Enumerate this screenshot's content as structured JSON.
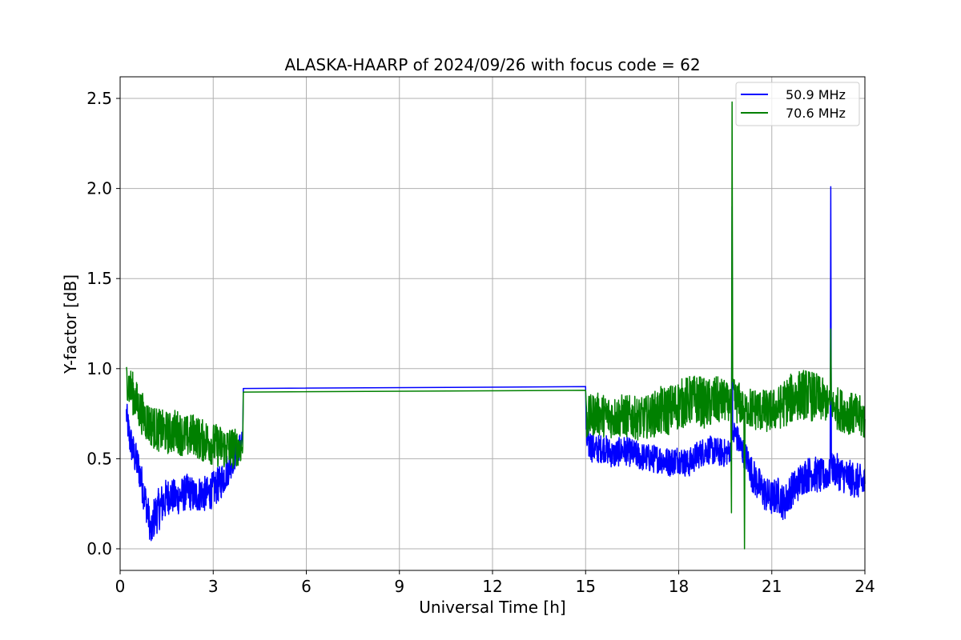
{
  "chart_data": {
    "type": "line",
    "title": "ALASKA-HAARP of 2024/09/26 with focus code = 62",
    "xlabel": "Universal Time [h]",
    "ylabel": "Y-factor [dB]",
    "xlim": [
      0,
      24
    ],
    "ylim": [
      -0.12,
      2.62
    ],
    "xticks": [
      0,
      3,
      6,
      9,
      12,
      15,
      18,
      21,
      24
    ],
    "xtick_labels": [
      "0",
      "3",
      "6",
      "9",
      "12",
      "15",
      "18",
      "21",
      "24"
    ],
    "yticks": [
      0.0,
      0.5,
      1.0,
      1.5,
      2.0,
      2.5
    ],
    "ytick_labels": [
      "0.0",
      "0.5",
      "1.0",
      "1.5",
      "2.0",
      "2.5"
    ],
    "grid": true,
    "legend_position": "top-right",
    "series": [
      {
        "name": "50.9 MHz",
        "color": "#0000ff",
        "x": [
          0.2,
          0.3,
          0.45,
          0.6,
          0.75,
          0.9,
          1.0,
          1.1,
          1.25,
          1.4,
          1.6,
          1.8,
          2.0,
          2.2,
          2.4,
          2.6,
          2.8,
          3.0,
          3.2,
          3.4,
          3.6,
          3.8,
          3.95,
          3.97,
          15.0,
          15.02,
          15.3,
          15.6,
          15.9,
          16.2,
          16.5,
          16.8,
          17.1,
          17.4,
          17.7,
          18.0,
          18.3,
          18.6,
          18.9,
          19.2,
          19.5,
          19.7,
          19.72,
          19.74,
          19.8,
          20.0,
          20.2,
          20.4,
          20.6,
          20.8,
          21.0,
          21.2,
          21.4,
          21.6,
          21.8,
          22.0,
          22.3,
          22.6,
          22.88,
          22.9,
          22.92,
          23.1,
          23.4,
          23.7,
          24.0
        ],
        "y": [
          0.75,
          0.62,
          0.52,
          0.45,
          0.32,
          0.2,
          0.08,
          0.18,
          0.22,
          0.26,
          0.3,
          0.28,
          0.3,
          0.32,
          0.29,
          0.31,
          0.3,
          0.33,
          0.36,
          0.42,
          0.48,
          0.55,
          0.62,
          0.89,
          0.9,
          0.6,
          0.55,
          0.56,
          0.52,
          0.55,
          0.53,
          0.51,
          0.5,
          0.5,
          0.48,
          0.5,
          0.47,
          0.52,
          0.55,
          0.54,
          0.53,
          0.55,
          1.9,
          0.6,
          0.65,
          0.56,
          0.5,
          0.4,
          0.35,
          0.3,
          0.28,
          0.3,
          0.25,
          0.32,
          0.35,
          0.4,
          0.42,
          0.4,
          0.42,
          2.01,
          0.45,
          0.43,
          0.4,
          0.38,
          0.36
        ],
        "band": [
          0.08,
          0.1,
          0.1,
          0.1,
          0.1,
          0.1,
          0.08,
          0.12,
          0.12,
          0.12,
          0.1,
          0.1,
          0.1,
          0.1,
          0.1,
          0.1,
          0.1,
          0.1,
          0.1,
          0.1,
          0.08,
          0.08,
          0.06,
          0.0,
          0.0,
          0.1,
          0.08,
          0.08,
          0.08,
          0.08,
          0.08,
          0.08,
          0.08,
          0.08,
          0.08,
          0.08,
          0.08,
          0.08,
          0.08,
          0.08,
          0.08,
          0.06,
          0.0,
          0.05,
          0.08,
          0.08,
          0.08,
          0.1,
          0.1,
          0.1,
          0.1,
          0.1,
          0.1,
          0.1,
          0.1,
          0.1,
          0.1,
          0.1,
          0.08,
          0.0,
          0.08,
          0.1,
          0.1,
          0.1,
          0.1
        ]
      },
      {
        "name": "70.6 MHz",
        "color": "#008000",
        "x": [
          0.2,
          0.3,
          0.45,
          0.6,
          0.75,
          0.9,
          1.05,
          1.2,
          1.4,
          1.6,
          1.8,
          2.0,
          2.2,
          2.4,
          2.6,
          2.8,
          3.0,
          3.2,
          3.4,
          3.6,
          3.8,
          3.95,
          3.97,
          15.0,
          15.02,
          15.3,
          15.6,
          15.9,
          16.2,
          16.5,
          16.8,
          17.1,
          17.4,
          17.7,
          18.0,
          18.3,
          18.6,
          18.9,
          19.2,
          19.5,
          19.68,
          19.7,
          19.72,
          19.74,
          19.8,
          20.0,
          20.1,
          20.12,
          20.14,
          20.3,
          20.6,
          20.9,
          21.2,
          21.5,
          21.8,
          22.1,
          22.4,
          22.7,
          22.88,
          22.9,
          22.92,
          23.1,
          23.4,
          23.7,
          24.0
        ],
        "y": [
          0.95,
          0.9,
          0.85,
          0.78,
          0.74,
          0.7,
          0.68,
          0.66,
          0.65,
          0.64,
          0.66,
          0.63,
          0.62,
          0.64,
          0.6,
          0.6,
          0.58,
          0.57,
          0.56,
          0.56,
          0.56,
          0.56,
          0.87,
          0.88,
          0.72,
          0.75,
          0.74,
          0.73,
          0.74,
          0.73,
          0.72,
          0.74,
          0.76,
          0.77,
          0.8,
          0.82,
          0.83,
          0.8,
          0.82,
          0.82,
          0.8,
          0.2,
          2.48,
          0.9,
          0.82,
          0.8,
          0.78,
          0.0,
          0.78,
          0.78,
          0.77,
          0.76,
          0.78,
          0.82,
          0.85,
          0.86,
          0.84,
          0.82,
          0.8,
          1.22,
          0.8,
          0.78,
          0.76,
          0.74,
          0.72
        ],
        "band": [
          0.1,
          0.12,
          0.12,
          0.12,
          0.12,
          0.12,
          0.12,
          0.12,
          0.12,
          0.12,
          0.12,
          0.12,
          0.12,
          0.12,
          0.12,
          0.12,
          0.12,
          0.12,
          0.12,
          0.12,
          0.1,
          0.08,
          0.0,
          0.0,
          0.12,
          0.12,
          0.12,
          0.12,
          0.12,
          0.12,
          0.12,
          0.12,
          0.14,
          0.14,
          0.14,
          0.14,
          0.14,
          0.14,
          0.14,
          0.12,
          0.08,
          0.0,
          0.0,
          0.05,
          0.12,
          0.12,
          0.08,
          0.0,
          0.08,
          0.12,
          0.12,
          0.12,
          0.12,
          0.14,
          0.14,
          0.14,
          0.14,
          0.12,
          0.08,
          0.0,
          0.08,
          0.12,
          0.12,
          0.12,
          0.12
        ]
      }
    ]
  }
}
